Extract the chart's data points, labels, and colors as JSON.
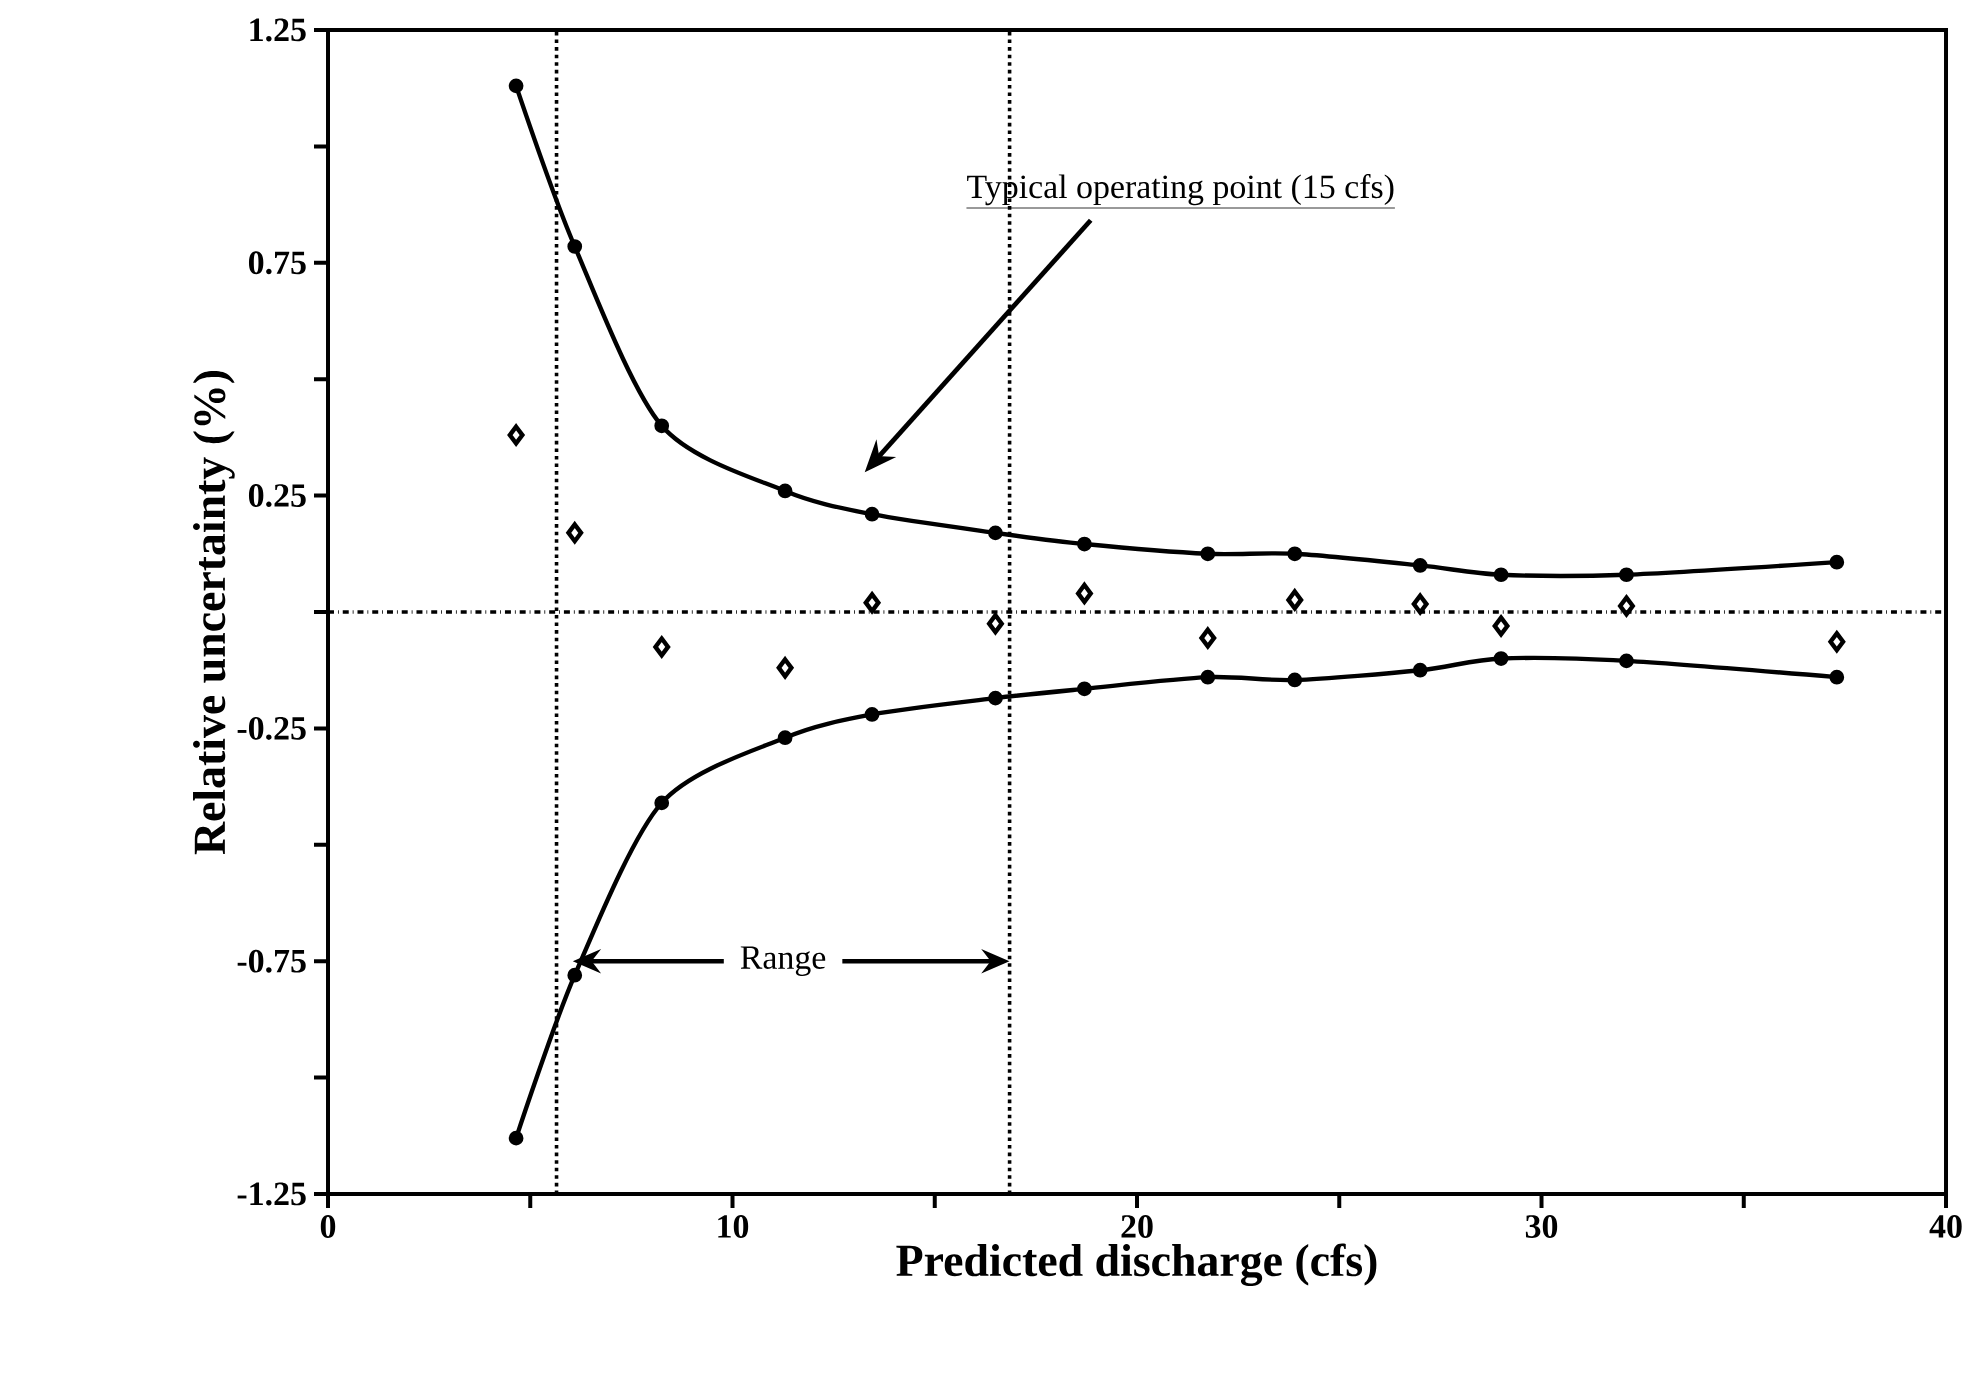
{
  "chart_data": {
    "type": "line",
    "xlabel": "Predicted discharge (cfs)",
    "ylabel": "Relative uncertainty (%)",
    "x": [
      4.65,
      6.1,
      8.25,
      11.3,
      13.45,
      16.5,
      18.7,
      21.75,
      23.9,
      27.0,
      29.0,
      32.1,
      37.3
    ],
    "series": [
      {
        "color": "#000000",
        "marker": "circle",
        "line_style": "solid",
        "values": [
          1.13,
          0.785,
          0.4,
          0.26,
          0.21,
          0.17,
          0.146,
          0.125,
          0.125,
          0.1,
          0.08,
          0.08,
          0.107
        ]
      },
      {
        "color": "#000000",
        "marker": "circle",
        "line_style": "solid",
        "values": [
          -1.13,
          -0.78,
          -0.41,
          -0.27,
          -0.22,
          -0.185,
          -0.165,
          -0.14,
          -0.146,
          -0.125,
          -0.1,
          -0.105,
          -0.14
        ]
      },
      {
        "type": "scatter",
        "color": "#000000",
        "marker": "diamond",
        "values": [
          0.38,
          0.17,
          -0.075,
          -0.12,
          0.02,
          -0.025,
          0.04,
          -0.056,
          0.026,
          0.017,
          -0.03,
          0.013,
          -0.064
        ]
      }
    ],
    "xlim": [
      0,
      40
    ],
    "ylim": [
      -1.25,
      1.25
    ],
    "xticks": [
      0,
      {
        "value": 5,
        "label": null
      },
      10,
      {
        "value": 15,
        "label": null
      },
      20,
      {
        "value": 25,
        "label": null
      },
      30,
      {
        "value": 35,
        "label": null
      },
      40
    ],
    "yticks": [
      -1.25,
      {
        "value": -1,
        "label": null
      },
      -0.75,
      {
        "value": -0.5,
        "label": null
      },
      -0.25,
      {
        "value": 0,
        "label": null
      },
      0.25,
      {
        "value": 0.5,
        "label": null
      },
      0.75,
      {
        "value": 1,
        "label": null
      },
      1.25
    ],
    "ref_lines": [
      {
        "axis": "y",
        "value": 0,
        "line_style": "dashdot",
        "color": "#000000"
      },
      {
        "axis": "x",
        "value": 5.65,
        "line_style": "dotted",
        "color": "#000000"
      },
      {
        "axis": "x",
        "value": 16.85,
        "line_style": "dotted",
        "color": "#000000"
      }
    ],
    "annotations": [
      "Typical operating point (15 cfs)",
      "Range"
    ]
  }
}
